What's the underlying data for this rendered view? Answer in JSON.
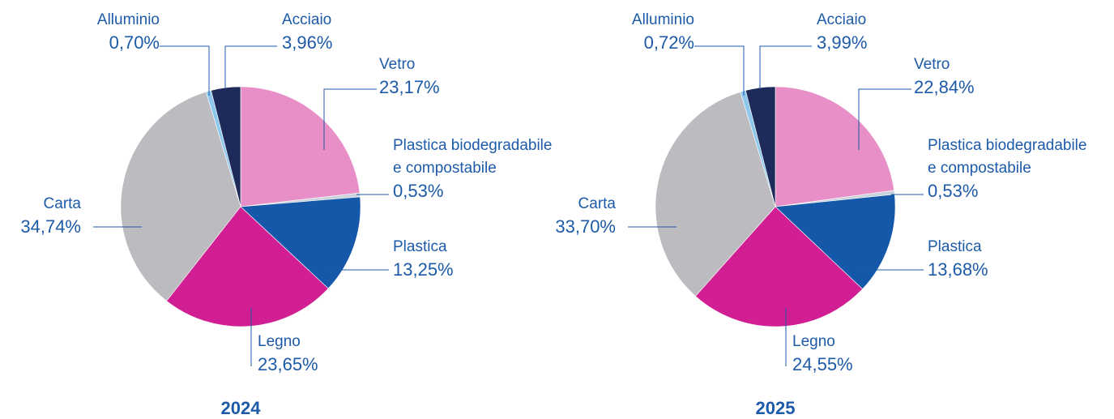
{
  "chart_data": [
    {
      "type": "pie",
      "title": "2024",
      "categories": [
        "Vetro",
        "Plastica biodegradabile\ne compostabile",
        "Plastica",
        "Legno",
        "Carta",
        "Alluminio",
        "Acciaio"
      ],
      "values": [
        23.17,
        0.53,
        13.25,
        23.65,
        34.74,
        0.7,
        3.96
      ],
      "value_labels": [
        "23,17%",
        "0,53%",
        "13,25%",
        "23,65%",
        "34,74%",
        "0,70%",
        "3,96%"
      ],
      "colors": [
        "#e88fc8",
        "#c9d3db",
        "#1557a8",
        "#d11f93",
        "#bcbcc0",
        "#8dc8ec",
        "#1e2a5a"
      ]
    },
    {
      "type": "pie",
      "title": "2025",
      "categories": [
        "Vetro",
        "Plastica biodegradabile\ne compostabile",
        "Plastica",
        "Legno",
        "Carta",
        "Alluminio",
        "Acciaio"
      ],
      "values": [
        22.84,
        0.53,
        13.68,
        24.55,
        33.7,
        0.72,
        3.99
      ],
      "value_labels": [
        "22,84%",
        "0,53%",
        "13,68%",
        "24,55%",
        "33,70%",
        "0,72%",
        "3,99%"
      ],
      "colors": [
        "#e88fc8",
        "#c9d3db",
        "#1557a8",
        "#d11f93",
        "#bcbcc0",
        "#8dc8ec",
        "#1e2a5a"
      ]
    }
  ]
}
